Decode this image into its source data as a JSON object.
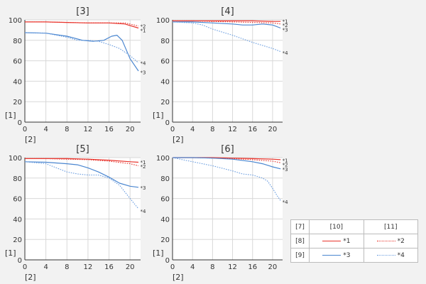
{
  "colors": {
    "c1": "#e8342c",
    "c2": "#e8342c",
    "c3": "#4a86d0",
    "c4": "#6d9fe0",
    "grid": "#d8d8d8",
    "axis": "#333333",
    "plot_bg": "#ffffff",
    "page_bg": "#f2f2f2"
  },
  "axis_labels": {
    "y": "[1]",
    "x": "[2]"
  },
  "legend": {
    "headers": [
      "[7]",
      "[10]",
      "[11]"
    ],
    "rows": [
      {
        "label": "[8]",
        "a_tag": "*1",
        "b_tag": "*2"
      },
      {
        "label": "[9]",
        "a_tag": "*3",
        "b_tag": "*4"
      }
    ]
  },
  "chart_data": [
    {
      "type": "line",
      "title": "[3]",
      "xlim": [
        0,
        22
      ],
      "ylim": [
        0,
        100
      ],
      "xticks": [
        0,
        4,
        8,
        12,
        16,
        20
      ],
      "yticks": [
        0,
        20,
        40,
        60,
        80,
        100
      ],
      "series": [
        {
          "name": "*1",
          "style": "solid",
          "color": "#e8342c",
          "x": [
            0,
            4,
            8,
            12,
            16,
            19,
            21.6
          ],
          "y": [
            98,
            98,
            97.5,
            97,
            97,
            96,
            92
          ]
        },
        {
          "name": "*2",
          "style": "dotted",
          "color": "#e8342c",
          "x": [
            0,
            4,
            8,
            12,
            16,
            19,
            21.6
          ],
          "y": [
            98,
            98,
            97.5,
            97,
            97,
            97,
            94
          ]
        },
        {
          "name": "*3",
          "style": "solid",
          "color": "#4a86d0",
          "x": [
            0,
            4,
            8,
            11,
            13,
            15,
            16.5,
            17.5,
            18.5,
            20,
            21.6
          ],
          "y": [
            87.5,
            87,
            84,
            80,
            79,
            80,
            84,
            85,
            80,
            62,
            50
          ]
        },
        {
          "name": "*4",
          "style": "dotted",
          "color": "#6d9fe0",
          "x": [
            0,
            4,
            8,
            10,
            12,
            14,
            16,
            18,
            20,
            21.6
          ],
          "y": [
            87.5,
            87,
            83,
            80,
            80,
            79,
            76,
            72,
            65,
            58
          ]
        }
      ],
      "labels": [
        {
          "text": "*2",
          "x": 21.8,
          "y": 94
        },
        {
          "text": "*1",
          "x": 21.8,
          "y": 90
        },
        {
          "text": "*4",
          "x": 21.8,
          "y": 58
        },
        {
          "text": "*3",
          "x": 21.8,
          "y": 49
        }
      ]
    },
    {
      "type": "line",
      "title": "[4]",
      "xlim": [
        0,
        22
      ],
      "ylim": [
        0,
        100
      ],
      "xticks": [
        0,
        4,
        8,
        12,
        16,
        20
      ],
      "yticks": [
        0,
        20,
        40,
        60,
        80,
        100
      ],
      "series": [
        {
          "name": "*1",
          "style": "solid",
          "color": "#e8342c",
          "x": [
            0,
            4,
            8,
            12,
            16,
            20,
            21.6
          ],
          "y": [
            99,
            99,
            99,
            99,
            99,
            98.5,
            98.5
          ]
        },
        {
          "name": "*2",
          "style": "dotted",
          "color": "#e8342c",
          "x": [
            0,
            4,
            8,
            12,
            16,
            20,
            21.6
          ],
          "y": [
            99,
            99,
            98.5,
            98,
            97.5,
            97,
            96
          ]
        },
        {
          "name": "*3",
          "style": "solid",
          "color": "#4a86d0",
          "x": [
            0,
            4,
            8,
            12,
            14,
            16,
            18,
            20,
            21.6
          ],
          "y": [
            98,
            98,
            97,
            96,
            95,
            95,
            96,
            95,
            92
          ]
        },
        {
          "name": "*4",
          "style": "dotted",
          "color": "#6d9fe0",
          "x": [
            0,
            4,
            6,
            8,
            12,
            16,
            20,
            21.6
          ],
          "y": [
            98,
            97,
            95,
            91,
            85,
            78,
            72,
            69
          ]
        }
      ],
      "labels": [
        {
          "text": "*1",
          "x": 21.8,
          "y": 99
        },
        {
          "text": "*2",
          "x": 21.8,
          "y": 95
        },
        {
          "text": "*3",
          "x": 21.8,
          "y": 90.5
        },
        {
          "text": "*4",
          "x": 21.8,
          "y": 68
        }
      ]
    },
    {
      "type": "line",
      "title": "[5]",
      "xlim": [
        0,
        22
      ],
      "ylim": [
        0,
        100
      ],
      "xticks": [
        0,
        4,
        8,
        12,
        16,
        20
      ],
      "yticks": [
        0,
        20,
        40,
        60,
        80,
        100
      ],
      "series": [
        {
          "name": "*1",
          "style": "solid",
          "color": "#e8342c",
          "x": [
            0,
            4,
            8,
            12,
            16,
            20,
            21.6
          ],
          "y": [
            99,
            99,
            99,
            98.5,
            97.5,
            96,
            95.5
          ]
        },
        {
          "name": "*2",
          "style": "dotted",
          "color": "#e8342c",
          "x": [
            0,
            4,
            8,
            12,
            16,
            20,
            21.6
          ],
          "y": [
            99,
            99,
            98.5,
            98,
            96.5,
            94,
            92
          ]
        },
        {
          "name": "*3",
          "style": "solid",
          "color": "#4a86d0",
          "x": [
            0,
            4,
            8,
            10,
            12,
            14,
            16,
            18,
            20,
            21.6
          ],
          "y": [
            96,
            95.5,
            94,
            93,
            90,
            86,
            81,
            75,
            72,
            71
          ]
        },
        {
          "name": "*4",
          "style": "dotted",
          "color": "#6d9fe0",
          "x": [
            0,
            4,
            6,
            8,
            10,
            12,
            14,
            16,
            18,
            20,
            21.6
          ],
          "y": [
            96,
            94,
            90,
            86,
            84,
            83,
            83,
            80,
            73,
            60,
            50
          ]
        }
      ],
      "labels": [
        {
          "text": "*1",
          "x": 21.8,
          "y": 96
        },
        {
          "text": "*2",
          "x": 21.8,
          "y": 91.5
        },
        {
          "text": "*3",
          "x": 21.8,
          "y": 71
        },
        {
          "text": "*4",
          "x": 21.8,
          "y": 48
        }
      ]
    },
    {
      "type": "line",
      "title": "[6]",
      "xlim": [
        0,
        22
      ],
      "ylim": [
        0,
        100
      ],
      "xticks": [
        0,
        4,
        8,
        12,
        16,
        20
      ],
      "yticks": [
        0,
        20,
        40,
        60,
        80,
        100
      ],
      "series": [
        {
          "name": "*1",
          "style": "solid",
          "color": "#e8342c",
          "x": [
            0,
            4,
            8,
            12,
            16,
            20,
            21.6
          ],
          "y": [
            100,
            100,
            100,
            99.5,
            99,
            98.5,
            98
          ]
        },
        {
          "name": "*2",
          "style": "dotted",
          "color": "#e8342c",
          "x": [
            0,
            4,
            8,
            12,
            16,
            20,
            21.6
          ],
          "y": [
            100,
            100,
            99.5,
            99,
            98,
            96.5,
            95
          ]
        },
        {
          "name": "*3",
          "style": "solid",
          "color": "#4a86d0",
          "x": [
            0,
            4,
            8,
            12,
            16,
            18,
            20,
            21.6
          ],
          "y": [
            100,
            100,
            99.5,
            98.5,
            96,
            94,
            91,
            89
          ]
        },
        {
          "name": "*4",
          "style": "dotted",
          "color": "#6d9fe0",
          "x": [
            0,
            4,
            8,
            12,
            14,
            16,
            18,
            19,
            20,
            21,
            21.6
          ],
          "y": [
            100,
            96,
            92,
            87,
            84,
            83,
            80,
            77,
            70,
            62,
            58
          ]
        }
      ],
      "labels": [
        {
          "text": "*1",
          "x": 21.8,
          "y": 97.5
        },
        {
          "text": "*2",
          "x": 21.8,
          "y": 93.5
        },
        {
          "text": "*3",
          "x": 21.8,
          "y": 89
        },
        {
          "text": "*4",
          "x": 21.8,
          "y": 57
        }
      ]
    }
  ]
}
